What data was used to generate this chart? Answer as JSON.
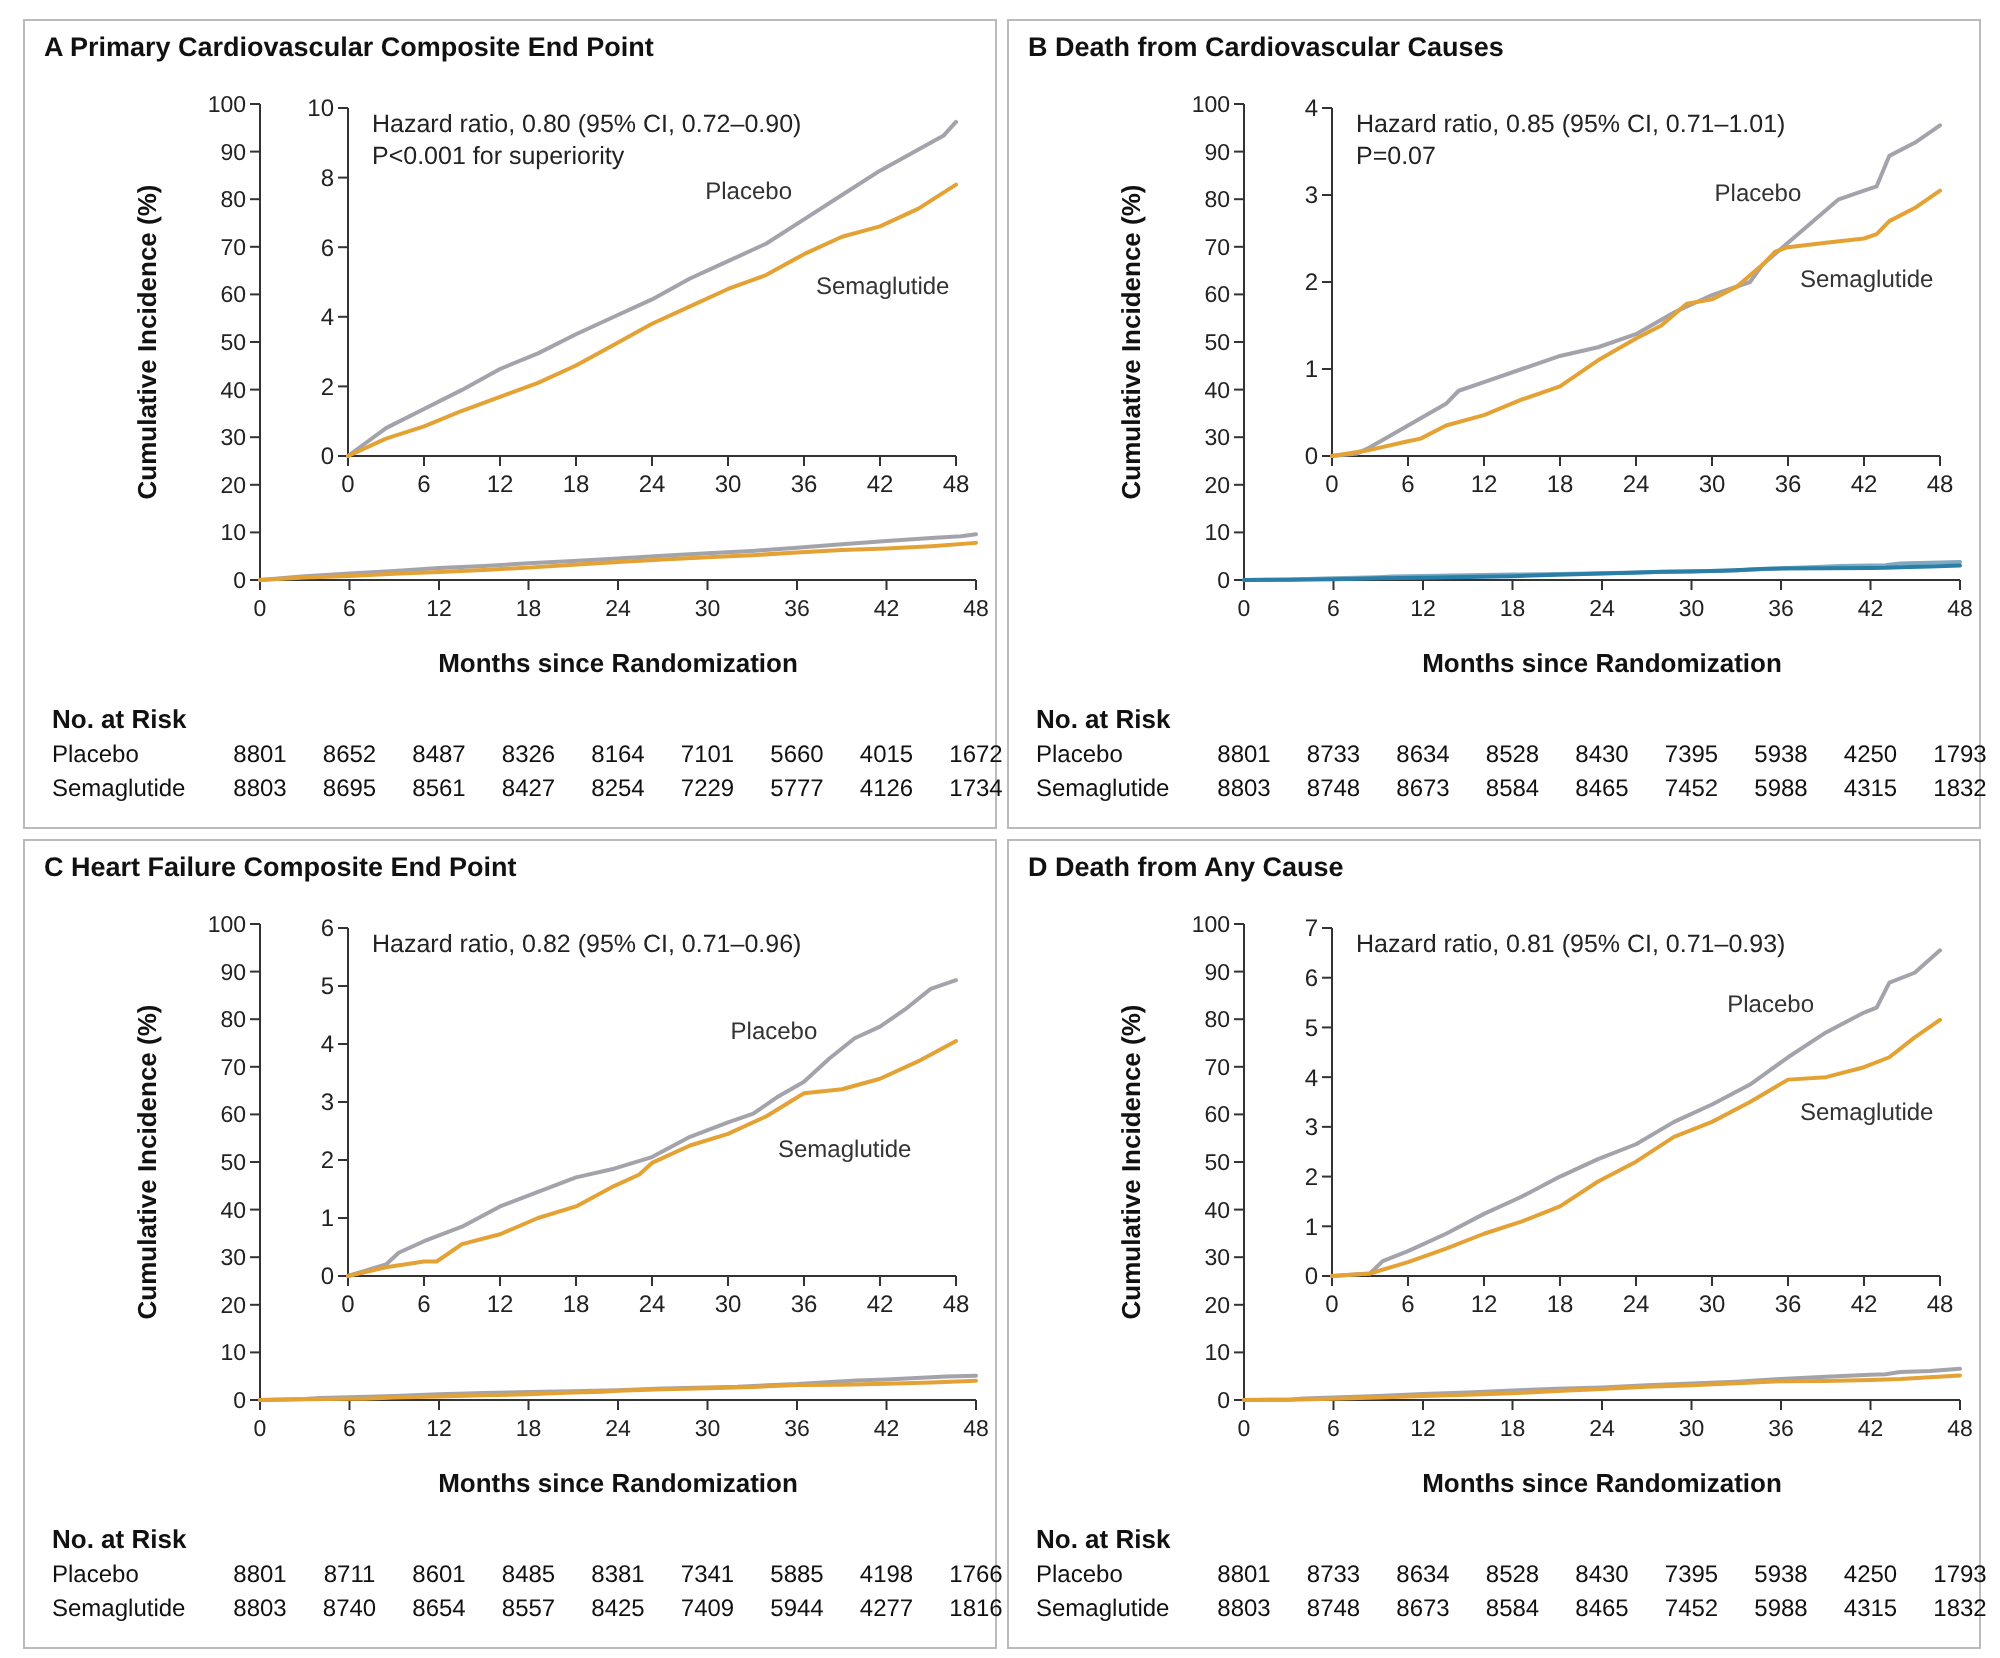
{
  "chart_data": [
    {
      "type": "line",
      "title": "A  Primary Cardiovascular Composite End Point",
      "xlabel": "Months since Randomization",
      "ylabel": "Cumulative Incidence (%)",
      "xlim": [
        0,
        48
      ],
      "ylim": [
        0,
        100
      ],
      "xticks": [
        0,
        6,
        12,
        18,
        24,
        30,
        36,
        42,
        48
      ],
      "yticks": [
        0,
        10,
        20,
        30,
        40,
        50,
        60,
        70,
        80,
        90,
        100
      ],
      "annotations": [
        "No. at Risk",
        "Placebo 8801 8652 8487 8326 8164 7101 5660 4015 1672",
        "Semaglutide 8803 8695 8561 8427 8254 7229 5777 4126 1734"
      ],
      "series": [
        {
          "color": "#a3a3ab",
          "x": [
            0,
            3,
            6,
            9,
            12,
            15,
            18,
            21,
            24,
            27,
            30,
            33,
            36,
            39,
            42,
            45,
            47,
            48
          ],
          "values": [
            0,
            0.8,
            1.35,
            1.9,
            2.5,
            2.95,
            3.5,
            4.0,
            4.5,
            5.1,
            5.6,
            6.1,
            6.8,
            7.5,
            8.2,
            8.8,
            9.2,
            9.6
          ]
        },
        {
          "color": "#e4a235",
          "x": [
            0,
            3,
            6,
            9,
            12,
            15,
            18,
            21,
            24,
            27,
            30,
            33,
            36,
            39,
            42,
            45,
            48
          ],
          "values": [
            0,
            0.5,
            0.85,
            1.3,
            1.7,
            2.1,
            2.6,
            3.2,
            3.8,
            4.3,
            4.8,
            5.2,
            5.8,
            6.3,
            6.6,
            7.1,
            7.8
          ]
        }
      ]
    },
    {
      "type": "line",
      "xlim": [
        0,
        48
      ],
      "ylim": [
        0,
        10
      ],
      "xticks": [
        0,
        6,
        12,
        18,
        24,
        30,
        36,
        42,
        48
      ],
      "yticks": [
        0,
        2,
        4,
        6,
        8,
        10
      ],
      "annotations": [
        "Hazard ratio, 0.80 (95% CI, 0.72–0.90)",
        "P<0.001 for superiority"
      ],
      "series": [
        {
          "name": "Placebo",
          "color": "#a3a3ab",
          "x": [
            0,
            3,
            6,
            9,
            12,
            15,
            18,
            21,
            24,
            27,
            30,
            33,
            36,
            39,
            42,
            45,
            47,
            48
          ],
          "values": [
            0,
            0.8,
            1.35,
            1.9,
            2.5,
            2.95,
            3.5,
            4.0,
            4.5,
            5.1,
            5.6,
            6.1,
            6.8,
            7.5,
            8.2,
            8.8,
            9.2,
            9.6
          ]
        },
        {
          "name": "Semaglutide",
          "color": "#e4a235",
          "x": [
            0,
            3,
            6,
            9,
            12,
            15,
            18,
            21,
            24,
            27,
            30,
            33,
            36,
            39,
            42,
            45,
            48
          ],
          "values": [
            0,
            0.5,
            0.85,
            1.3,
            1.7,
            2.1,
            2.6,
            3.2,
            3.8,
            4.3,
            4.8,
            5.2,
            5.8,
            6.3,
            6.6,
            7.1,
            7.8
          ]
        }
      ]
    },
    {
      "type": "line",
      "title": "B  Death from Cardiovascular Causes",
      "xlabel": "Months since Randomization",
      "ylabel": "Cumulative Incidence (%)",
      "xlim": [
        0,
        48
      ],
      "ylim": [
        0,
        100
      ],
      "xticks": [
        0,
        6,
        12,
        18,
        24,
        30,
        36,
        42,
        48
      ],
      "yticks": [
        0,
        10,
        20,
        30,
        40,
        50,
        60,
        70,
        80,
        90,
        100
      ],
      "annotations": [
        "No. at Risk",
        "Placebo 8801 8733 8634 8528 8430 7395 5938 4250 1793",
        "Semaglutide 8803 8748 8673 8584 8465 7452 5988 4315 1832"
      ],
      "series": [
        {
          "color": "#7fa9c0",
          "x": [
            0,
            2,
            3,
            6,
            9,
            10,
            12,
            15,
            18,
            21,
            24,
            27,
            30,
            33,
            34,
            36,
            38,
            40,
            42,
            43,
            44,
            46,
            48
          ],
          "values": [
            0,
            0.03,
            0.1,
            0.35,
            0.6,
            0.75,
            0.85,
            1.0,
            1.15,
            1.25,
            1.4,
            1.65,
            1.85,
            2.0,
            2.2,
            2.45,
            2.7,
            2.95,
            3.05,
            3.1,
            3.45,
            3.6,
            3.8
          ]
        },
        {
          "color": "#2a7fa8",
          "x": [
            0,
            3,
            6,
            7,
            9,
            12,
            15,
            18,
            21,
            24,
            26,
            28,
            30,
            32,
            34,
            35,
            36,
            39,
            42,
            43,
            44,
            46,
            48
          ],
          "values": [
            0,
            0.07,
            0.17,
            0.2,
            0.35,
            0.47,
            0.65,
            0.8,
            1.1,
            1.35,
            1.5,
            1.75,
            1.8,
            1.95,
            2.2,
            2.35,
            2.4,
            2.45,
            2.5,
            2.55,
            2.7,
            2.85,
            3.05
          ]
        }
      ]
    },
    {
      "type": "line",
      "xlim": [
        0,
        48
      ],
      "ylim": [
        0,
        4
      ],
      "xticks": [
        0,
        6,
        12,
        18,
        24,
        30,
        36,
        42,
        48
      ],
      "yticks": [
        0,
        1,
        2,
        3,
        4
      ],
      "annotations": [
        "Hazard ratio, 0.85 (95% CI, 0.71–1.01)",
        "P=0.07"
      ],
      "series": [
        {
          "name": "Placebo",
          "color": "#a3a3ab",
          "x": [
            0,
            2,
            3,
            6,
            9,
            10,
            12,
            15,
            18,
            21,
            24,
            27,
            30,
            33,
            34,
            36,
            38,
            40,
            42,
            43,
            44,
            46,
            48
          ],
          "values": [
            0,
            0.03,
            0.1,
            0.35,
            0.6,
            0.75,
            0.85,
            1.0,
            1.15,
            1.25,
            1.4,
            1.65,
            1.85,
            2.0,
            2.2,
            2.45,
            2.7,
            2.95,
            3.05,
            3.1,
            3.45,
            3.6,
            3.8
          ]
        },
        {
          "name": "Semaglutide",
          "color": "#e4a235",
          "x": [
            0,
            3,
            6,
            7,
            9,
            12,
            15,
            18,
            21,
            24,
            26,
            28,
            30,
            32,
            34,
            35,
            36,
            39,
            42,
            43,
            44,
            46,
            48
          ],
          "values": [
            0,
            0.07,
            0.17,
            0.2,
            0.35,
            0.47,
            0.65,
            0.8,
            1.1,
            1.35,
            1.5,
            1.75,
            1.8,
            1.95,
            2.2,
            2.35,
            2.4,
            2.45,
            2.5,
            2.55,
            2.7,
            2.85,
            3.05
          ]
        }
      ]
    },
    {
      "type": "line",
      "title": "C  Heart Failure Composite End Point",
      "xlabel": "Months since Randomization",
      "ylabel": "Cumulative Incidence (%)",
      "xlim": [
        0,
        48
      ],
      "ylim": [
        0,
        100
      ],
      "xticks": [
        0,
        6,
        12,
        18,
        24,
        30,
        36,
        42,
        48
      ],
      "yticks": [
        0,
        10,
        20,
        30,
        40,
        50,
        60,
        70,
        80,
        90,
        100
      ],
      "annotations": [
        "No. at Risk",
        "Placebo 8801 8711 8601 8485 8381 7341 5885 4198 1766",
        "Semaglutide 8803 8740 8654 8557 8425 7409 5944 4277 1816"
      ],
      "series": [
        {
          "color": "#a3a3ab",
          "x": [
            0,
            3,
            4,
            6,
            9,
            12,
            15,
            18,
            21,
            24,
            27,
            30,
            32,
            34,
            36,
            38,
            40,
            42,
            44,
            46,
            48
          ],
          "values": [
            0,
            0.2,
            0.4,
            0.6,
            0.85,
            1.2,
            1.45,
            1.7,
            1.85,
            2.05,
            2.4,
            2.65,
            2.8,
            3.1,
            3.35,
            3.75,
            4.1,
            4.3,
            4.6,
            4.95,
            5.1
          ]
        },
        {
          "color": "#e4a235",
          "x": [
            0,
            3,
            6,
            7,
            9,
            12,
            15,
            18,
            21,
            23,
            24,
            27,
            30,
            33,
            36,
            39,
            42,
            45,
            48
          ],
          "values": [
            0,
            0.15,
            0.25,
            0.25,
            0.55,
            0.72,
            1.0,
            1.2,
            1.55,
            1.75,
            1.95,
            2.25,
            2.45,
            2.75,
            3.15,
            3.22,
            3.4,
            3.7,
            4.05
          ]
        }
      ]
    },
    {
      "type": "line",
      "xlim": [
        0,
        48
      ],
      "ylim": [
        0,
        6
      ],
      "xticks": [
        0,
        6,
        12,
        18,
        24,
        30,
        36,
        42,
        48
      ],
      "yticks": [
        0,
        1,
        2,
        3,
        4,
        5,
        6
      ],
      "annotations": [
        "Hazard ratio, 0.82 (95% CI, 0.71–0.96)"
      ],
      "series": [
        {
          "name": "Placebo",
          "color": "#a3a3ab",
          "x": [
            0,
            3,
            4,
            6,
            9,
            12,
            15,
            18,
            21,
            24,
            27,
            30,
            32,
            34,
            36,
            38,
            40,
            42,
            44,
            46,
            48
          ],
          "values": [
            0,
            0.2,
            0.4,
            0.6,
            0.85,
            1.2,
            1.45,
            1.7,
            1.85,
            2.05,
            2.4,
            2.65,
            2.8,
            3.1,
            3.35,
            3.75,
            4.1,
            4.3,
            4.6,
            4.95,
            5.1
          ]
        },
        {
          "name": "Semaglutide",
          "color": "#e4a235",
          "x": [
            0,
            3,
            6,
            7,
            9,
            12,
            15,
            18,
            21,
            23,
            24,
            27,
            30,
            33,
            36,
            39,
            42,
            45,
            48
          ],
          "values": [
            0,
            0.15,
            0.25,
            0.25,
            0.55,
            0.72,
            1.0,
            1.2,
            1.55,
            1.75,
            1.95,
            2.25,
            2.45,
            2.75,
            3.15,
            3.22,
            3.4,
            3.7,
            4.05
          ]
        }
      ]
    },
    {
      "type": "line",
      "title": "D  Death from Any Cause",
      "xlabel": "Months since Randomization",
      "ylabel": "Cumulative Incidence (%)",
      "xlim": [
        0,
        48
      ],
      "ylim": [
        0,
        100
      ],
      "xticks": [
        0,
        6,
        12,
        18,
        24,
        30,
        36,
        42,
        48
      ],
      "yticks": [
        0,
        10,
        20,
        30,
        40,
        50,
        60,
        70,
        80,
        90,
        100
      ],
      "annotations": [
        "No. at Risk",
        "Placebo 8801 8733 8634 8528 8430 7395 5938 4250 1793",
        "Semaglutide 8803 8748 8673 8584 8465 7452 5988 4315 1832"
      ],
      "series": [
        {
          "color": "#a3a3ab",
          "x": [
            0,
            3,
            4,
            6,
            9,
            12,
            15,
            18,
            21,
            24,
            27,
            30,
            33,
            36,
            39,
            42,
            43,
            44,
            46,
            48
          ],
          "values": [
            0,
            0.05,
            0.3,
            0.5,
            0.85,
            1.25,
            1.6,
            2.0,
            2.35,
            2.65,
            3.1,
            3.45,
            3.85,
            4.4,
            4.9,
            5.3,
            5.4,
            5.9,
            6.1,
            6.55
          ]
        },
        {
          "color": "#e4a235",
          "x": [
            0,
            3,
            6,
            9,
            12,
            15,
            18,
            21,
            24,
            27,
            30,
            33,
            36,
            39,
            42,
            44,
            46,
            48
          ],
          "values": [
            0,
            0.05,
            0.28,
            0.55,
            0.85,
            1.1,
            1.4,
            1.9,
            2.3,
            2.8,
            3.1,
            3.5,
            3.95,
            4.0,
            4.2,
            4.4,
            4.8,
            5.15
          ]
        }
      ]
    },
    {
      "type": "line",
      "xlim": [
        0,
        48
      ],
      "ylim": [
        0,
        7
      ],
      "xticks": [
        0,
        6,
        12,
        18,
        24,
        30,
        36,
        42,
        48
      ],
      "yticks": [
        0,
        1,
        2,
        3,
        4,
        5,
        6,
        7
      ],
      "annotations": [
        "Hazard ratio, 0.81 (95% CI, 0.71–0.93)"
      ],
      "series": [
        {
          "name": "Placebo",
          "color": "#a3a3ab",
          "x": [
            0,
            3,
            4,
            6,
            9,
            12,
            15,
            18,
            21,
            24,
            27,
            30,
            33,
            36,
            39,
            42,
            43,
            44,
            46,
            48
          ],
          "values": [
            0,
            0.05,
            0.3,
            0.5,
            0.85,
            1.25,
            1.6,
            2.0,
            2.35,
            2.65,
            3.1,
            3.45,
            3.85,
            4.4,
            4.9,
            5.3,
            5.4,
            5.9,
            6.1,
            6.55
          ]
        },
        {
          "name": "Semaglutide",
          "color": "#e4a235",
          "x": [
            0,
            3,
            6,
            9,
            12,
            15,
            18,
            21,
            24,
            27,
            30,
            33,
            36,
            39,
            42,
            44,
            46,
            48
          ],
          "values": [
            0,
            0.05,
            0.28,
            0.55,
            0.85,
            1.1,
            1.4,
            1.9,
            2.3,
            2.8,
            3.1,
            3.5,
            3.95,
            4.0,
            4.2,
            4.4,
            4.8,
            5.15
          ]
        }
      ]
    }
  ]
}
